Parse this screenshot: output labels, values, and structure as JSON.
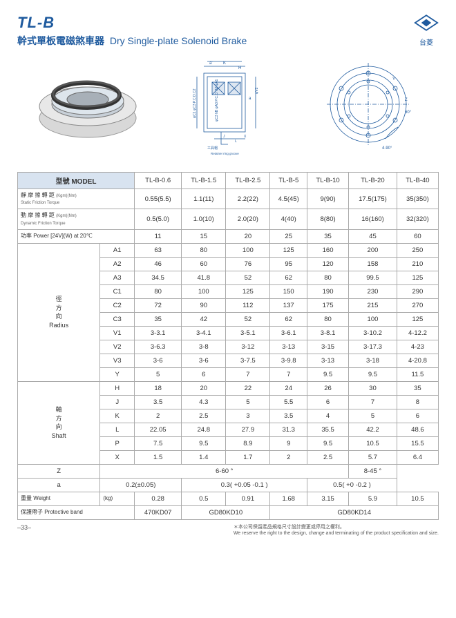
{
  "header": {
    "model_code": "TL-B",
    "subtitle_cn": "幹式單板電磁煞車器",
    "subtitle_en": "Dry Single-plate Solenoid Brake",
    "logo_text": "台菱"
  },
  "table": {
    "model_label": "型號 MODEL",
    "models": [
      "TL-B-0.6",
      "TL-B-1.5",
      "TL-B-2.5",
      "TL-B-5",
      "TL-B-10",
      "TL-B-20",
      "TL-B-40"
    ],
    "static_torque_label": "靜 摩 擦 轉 距",
    "static_torque_sub": "Static Friction Torque",
    "static_torque_unit": "(Kgm)(Nm)",
    "static_torque": [
      "0.55(5.5)",
      "1.1(11)",
      "2.2(22)",
      "4.5(45)",
      "9(90)",
      "17.5(175)",
      "35(350)"
    ],
    "dynamic_torque_label": "動 摩 擦 轉 距",
    "dynamic_torque_sub": "Dynamic Friction Torque",
    "dynamic_torque_unit": "(Kgm)(Nm)",
    "dynamic_torque": [
      "0.5(5.0)",
      "1.0(10)",
      "2.0(20)",
      "4(40)",
      "8(80)",
      "16(160)",
      "32(320)"
    ],
    "power_label": "功率 Power [24V](W) at 20℃",
    "power": [
      "11",
      "15",
      "20",
      "25",
      "35",
      "45",
      "60"
    ],
    "radius_label_cn": "徑<br>方<br>向",
    "radius_label_en": "Radius",
    "radius_rows": [
      {
        "k": "A1",
        "v": [
          "63",
          "80",
          "100",
          "125",
          "160",
          "200",
          "250"
        ]
      },
      {
        "k": "A2",
        "v": [
          "46",
          "60",
          "76",
          "95",
          "120",
          "158",
          "210"
        ]
      },
      {
        "k": "A3",
        "v": [
          "34.5",
          "41.8",
          "52",
          "62",
          "80",
          "99.5",
          "125"
        ]
      },
      {
        "k": "C1",
        "v": [
          "80",
          "100",
          "125",
          "150",
          "190",
          "230",
          "290"
        ]
      },
      {
        "k": "C2",
        "v": [
          "72",
          "90",
          "112",
          "137",
          "175",
          "215",
          "270"
        ]
      },
      {
        "k": "C3",
        "v": [
          "35",
          "42",
          "52",
          "62",
          "80",
          "100",
          "125"
        ]
      },
      {
        "k": "V1",
        "v": [
          "3-3.1",
          "3-4.1",
          "3-5.1",
          "3-6.1",
          "3-8.1",
          "3-10.2",
          "4-12.2"
        ]
      },
      {
        "k": "V2",
        "v": [
          "3-6.3",
          "3-8",
          "3-12",
          "3-13",
          "3-15",
          "3-17.3",
          "4-23"
        ]
      },
      {
        "k": "V3",
        "v": [
          "3-6",
          "3-6",
          "3-7.5",
          "3-9.8",
          "3-13",
          "3-18",
          "4-20.8"
        ]
      },
      {
        "k": "Y",
        "v": [
          "5",
          "6",
          "7",
          "7",
          "9.5",
          "9.5",
          "11.5"
        ]
      }
    ],
    "shaft_label_cn": "軸<br>方<br>向",
    "shaft_label_en": "Shaft",
    "shaft_rows": [
      {
        "k": "H",
        "v": [
          "18",
          "20",
          "22",
          "24",
          "26",
          "30",
          "35"
        ]
      },
      {
        "k": "J",
        "v": [
          "3.5",
          "4.3",
          "5",
          "5.5",
          "6",
          "7",
          "8"
        ]
      },
      {
        "k": "K",
        "v": [
          "2",
          "2.5",
          "3",
          "3.5",
          "4",
          "5",
          "6"
        ]
      },
      {
        "k": "L",
        "v": [
          "22.05",
          "24.8",
          "27.9",
          "31.3",
          "35.5",
          "42.2",
          "48.6"
        ]
      },
      {
        "k": "P",
        "v": [
          "7.5",
          "9.5",
          "8.9",
          "9",
          "9.5",
          "10.5",
          "15.5"
        ]
      },
      {
        "k": "X",
        "v": [
          "1.5",
          "1.4",
          "1.7",
          "2",
          "2.5",
          "5.7",
          "6.4"
        ]
      }
    ],
    "z_label": "Z",
    "z_span6": "6-60 °",
    "z_last": "8-45 °",
    "a_label": "a",
    "a_span2_1": "0.2(±0.05)",
    "a_span3": "0.3( +0.05 -0.1 )",
    "a_span2_2": "0.5( +0 -0.2 )",
    "weight_label_cn": "重量 Weight",
    "weight_unit": "(kg)",
    "weight": [
      "0.28",
      "0.5",
      "0.91",
      "1.68",
      "3.15",
      "5.9",
      "10.5"
    ],
    "band_label": "保護帶子 Protective band",
    "band_1": "470KD07",
    "band_2": "GD80KD10",
    "band_3": "GD80KD14"
  },
  "diagrams": {
    "retainer_label": "Retainer ring groove"
  },
  "footer": {
    "page_no": "–33–",
    "disclaimer_cn": "＊本公司保留產品規格尺寸設計變更或停用之權利。",
    "disclaimer_en": "We reserve the right to the design, change and terminating of the product specification and size."
  },
  "colors": {
    "brand": "#1e5a9e",
    "header_bg": "#d8e3f0",
    "border": "#aaaaaa"
  }
}
